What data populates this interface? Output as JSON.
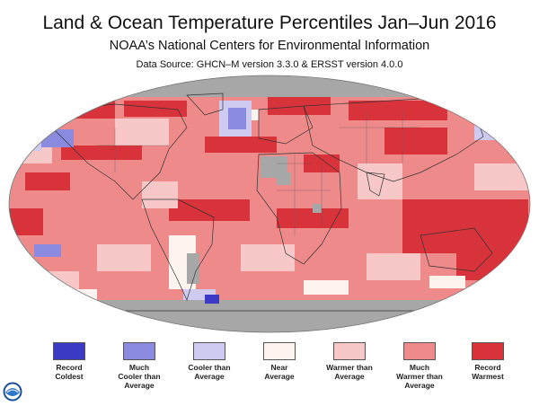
{
  "header": {
    "title": "Land & Ocean Temperature Percentiles Jan–Jun 2016",
    "subtitle": "NOAA’s National Centers for Environmental Information",
    "source": "Data Source: GHCN–M version 3.3.0 & ERSST version 4.0.0"
  },
  "colors": {
    "no_data": "#a7a7a7",
    "record_coldest": "#3a3ac4",
    "much_cooler": "#8a8ae0",
    "cooler": "#cfcaf0",
    "near_average": "#fdf3ef",
    "warmer": "#f8c7c7",
    "much_warmer": "#ee8a8a",
    "record_warmest": "#d8323a"
  },
  "legend": [
    {
      "label": "Record\nColdest",
      "color": "#3a3ac4"
    },
    {
      "label": "Much\nCooler than\nAverage",
      "color": "#8a8ae0"
    },
    {
      "label": "Cooler than\nAverage",
      "color": "#cfcaf0"
    },
    {
      "label": "Near\nAverage",
      "color": "#fdf3ef"
    },
    {
      "label": "Warmer than\nAverage",
      "color": "#f8c7c7"
    },
    {
      "label": "Much\nWarmer than\nAverage",
      "color": "#ee8a8a"
    },
    {
      "label": "Record\nWarmest",
      "color": "#d8323a"
    }
  ],
  "logo": {
    "icon": "noaa-logo-icon"
  }
}
